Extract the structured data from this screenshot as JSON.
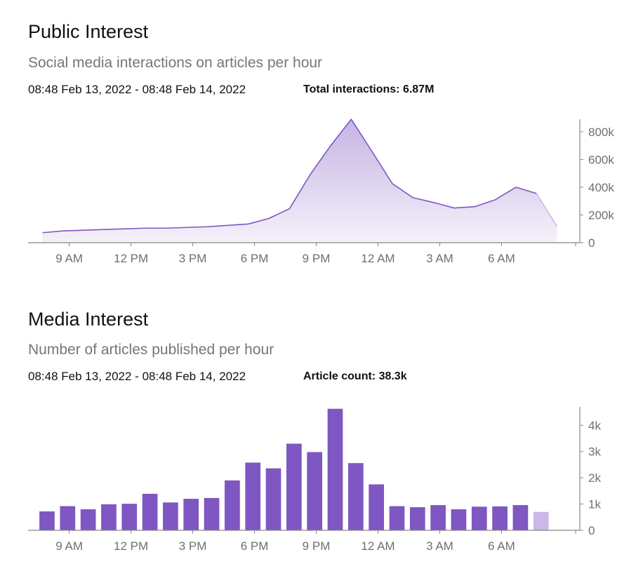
{
  "public": {
    "title": "Public Interest",
    "subtitle": "Social media interactions on articles per hour",
    "date_range": "08:48 Feb 13, 2022 - 08:48 Feb 14, 2022",
    "total": "Total interactions: 6.87M"
  },
  "media": {
    "title": "Media Interest",
    "subtitle": "Number of articles published per hour",
    "date_range": "08:48 Feb 13, 2022 - 08:48 Feb 14, 2022",
    "total": "Article count: 38.3k"
  },
  "colors": {
    "accent": "#7e57c2",
    "accent_light": "#c9b8e8",
    "axis": "#888888"
  },
  "chart_data": [
    {
      "id": "public",
      "type": "area",
      "title": "Public Interest",
      "xlabel": "",
      "ylabel": "",
      "x_tick_labels": [
        "9 AM",
        "12 PM",
        "3 PM",
        "6 PM",
        "9 PM",
        "12 AM",
        "3 AM",
        "6 AM"
      ],
      "x_tick_hours": [
        0.2,
        3.2,
        6.2,
        9.2,
        12.2,
        15.2,
        18.2,
        21.2
      ],
      "y_ticks": [
        0,
        200000,
        400000,
        600000,
        800000
      ],
      "y_tick_labels": [
        "0",
        "200k",
        "400k",
        "600k",
        "800k"
      ],
      "ylim": [
        0,
        880000
      ],
      "xlim": [
        -1.8,
        24.8
      ],
      "series": [
        {
          "name": "Social media interactions",
          "x": [
            -1.1,
            -0.1,
            0.9,
            1.9,
            2.9,
            3.9,
            4.9,
            5.9,
            6.9,
            7.9,
            8.9,
            9.9,
            10.9,
            11.9,
            12.9,
            13.9,
            14.9,
            15.9,
            16.9,
            17.9,
            18.9,
            19.9,
            20.9,
            21.9,
            22.9,
            23.9
          ],
          "values": [
            72000,
            85000,
            90000,
            95000,
            100000,
            105000,
            105000,
            110000,
            115000,
            125000,
            135000,
            175000,
            245000,
            490000,
            700000,
            890000,
            660000,
            425000,
            325000,
            290000,
            250000,
            260000,
            310000,
            400000,
            355000,
            115000
          ],
          "partial_last": true
        }
      ]
    },
    {
      "id": "media",
      "type": "bar",
      "title": "Media Interest",
      "xlabel": "",
      "ylabel": "",
      "x_tick_labels": [
        "9 AM",
        "12 PM",
        "3 PM",
        "6 PM",
        "9 PM",
        "12 AM",
        "3 AM",
        "6 AM"
      ],
      "x_tick_hours": [
        0.2,
        3.2,
        6.2,
        9.2,
        12.2,
        15.2,
        18.2,
        21.2
      ],
      "y_ticks": [
        0,
        1000,
        2000,
        3000,
        4000
      ],
      "y_tick_labels": [
        "0",
        "1k",
        "2k",
        "3k",
        "4k"
      ],
      "ylim": [
        0,
        4650
      ],
      "xlim": [
        -1.8,
        24.8
      ],
      "series": [
        {
          "name": "Articles published",
          "x": [
            -0.88,
            0.12,
            1.12,
            2.12,
            3.12,
            4.12,
            5.12,
            6.12,
            7.12,
            8.12,
            9.12,
            10.12,
            11.12,
            12.12,
            13.12,
            14.12,
            15.12,
            16.12,
            17.12,
            18.12,
            19.12,
            20.12,
            21.12,
            22.12,
            23.12
          ],
          "values": [
            720,
            920,
            800,
            990,
            1010,
            1390,
            1060,
            1200,
            1230,
            1900,
            2580,
            2360,
            3300,
            2980,
            4630,
            2560,
            1750,
            920,
            880,
            960,
            800,
            900,
            910,
            960,
            700
          ],
          "partial_last": true
        }
      ]
    }
  ]
}
